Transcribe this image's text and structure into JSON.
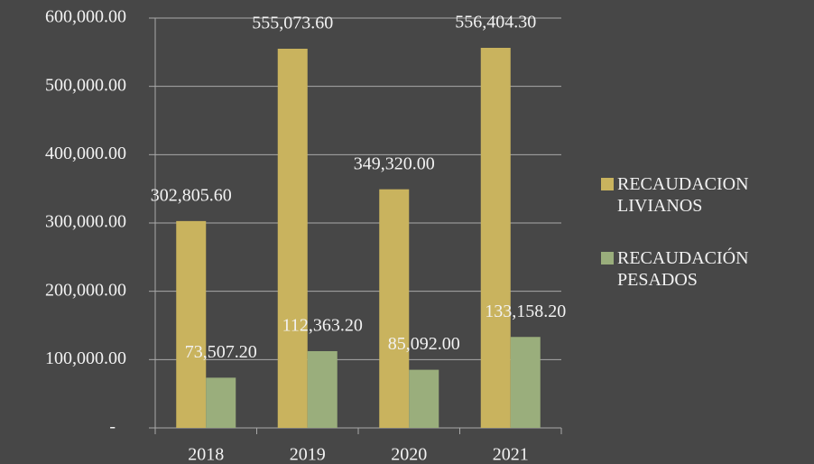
{
  "chart_data": {
    "type": "bar",
    "categories": [
      "2018",
      "2019",
      "2020",
      "2021"
    ],
    "series": [
      {
        "name": "RECAUDACION LIVIANOS",
        "color": "#c9b35e",
        "values": [
          302805.6,
          555073.6,
          349320.0,
          556404.3
        ],
        "value_labels": [
          "302,805.60",
          "555,073.60",
          "349,320.00",
          "556,404.30"
        ]
      },
      {
        "name": "RECAUDACIÓN PESADOS",
        "color": "#9aae7c",
        "values": [
          73507.2,
          112363.2,
          85092.0,
          133158.2
        ],
        "value_labels": [
          "73,507.20",
          "112,363.20",
          "85,092.00",
          "133,158.20"
        ]
      }
    ],
    "ylim": [
      0,
      600000
    ],
    "yticks": [
      {
        "value": 0,
        "label": "-"
      },
      {
        "value": 100000,
        "label": "100,000.00"
      },
      {
        "value": 200000,
        "label": "200,000.00"
      },
      {
        "value": 300000,
        "label": "300,000.00"
      },
      {
        "value": 400000,
        "label": "400,000.00"
      },
      {
        "value": 500000,
        "label": "500,000.00"
      },
      {
        "value": 600000,
        "label": "600,000.00"
      }
    ],
    "grid": true,
    "legend": "right"
  }
}
